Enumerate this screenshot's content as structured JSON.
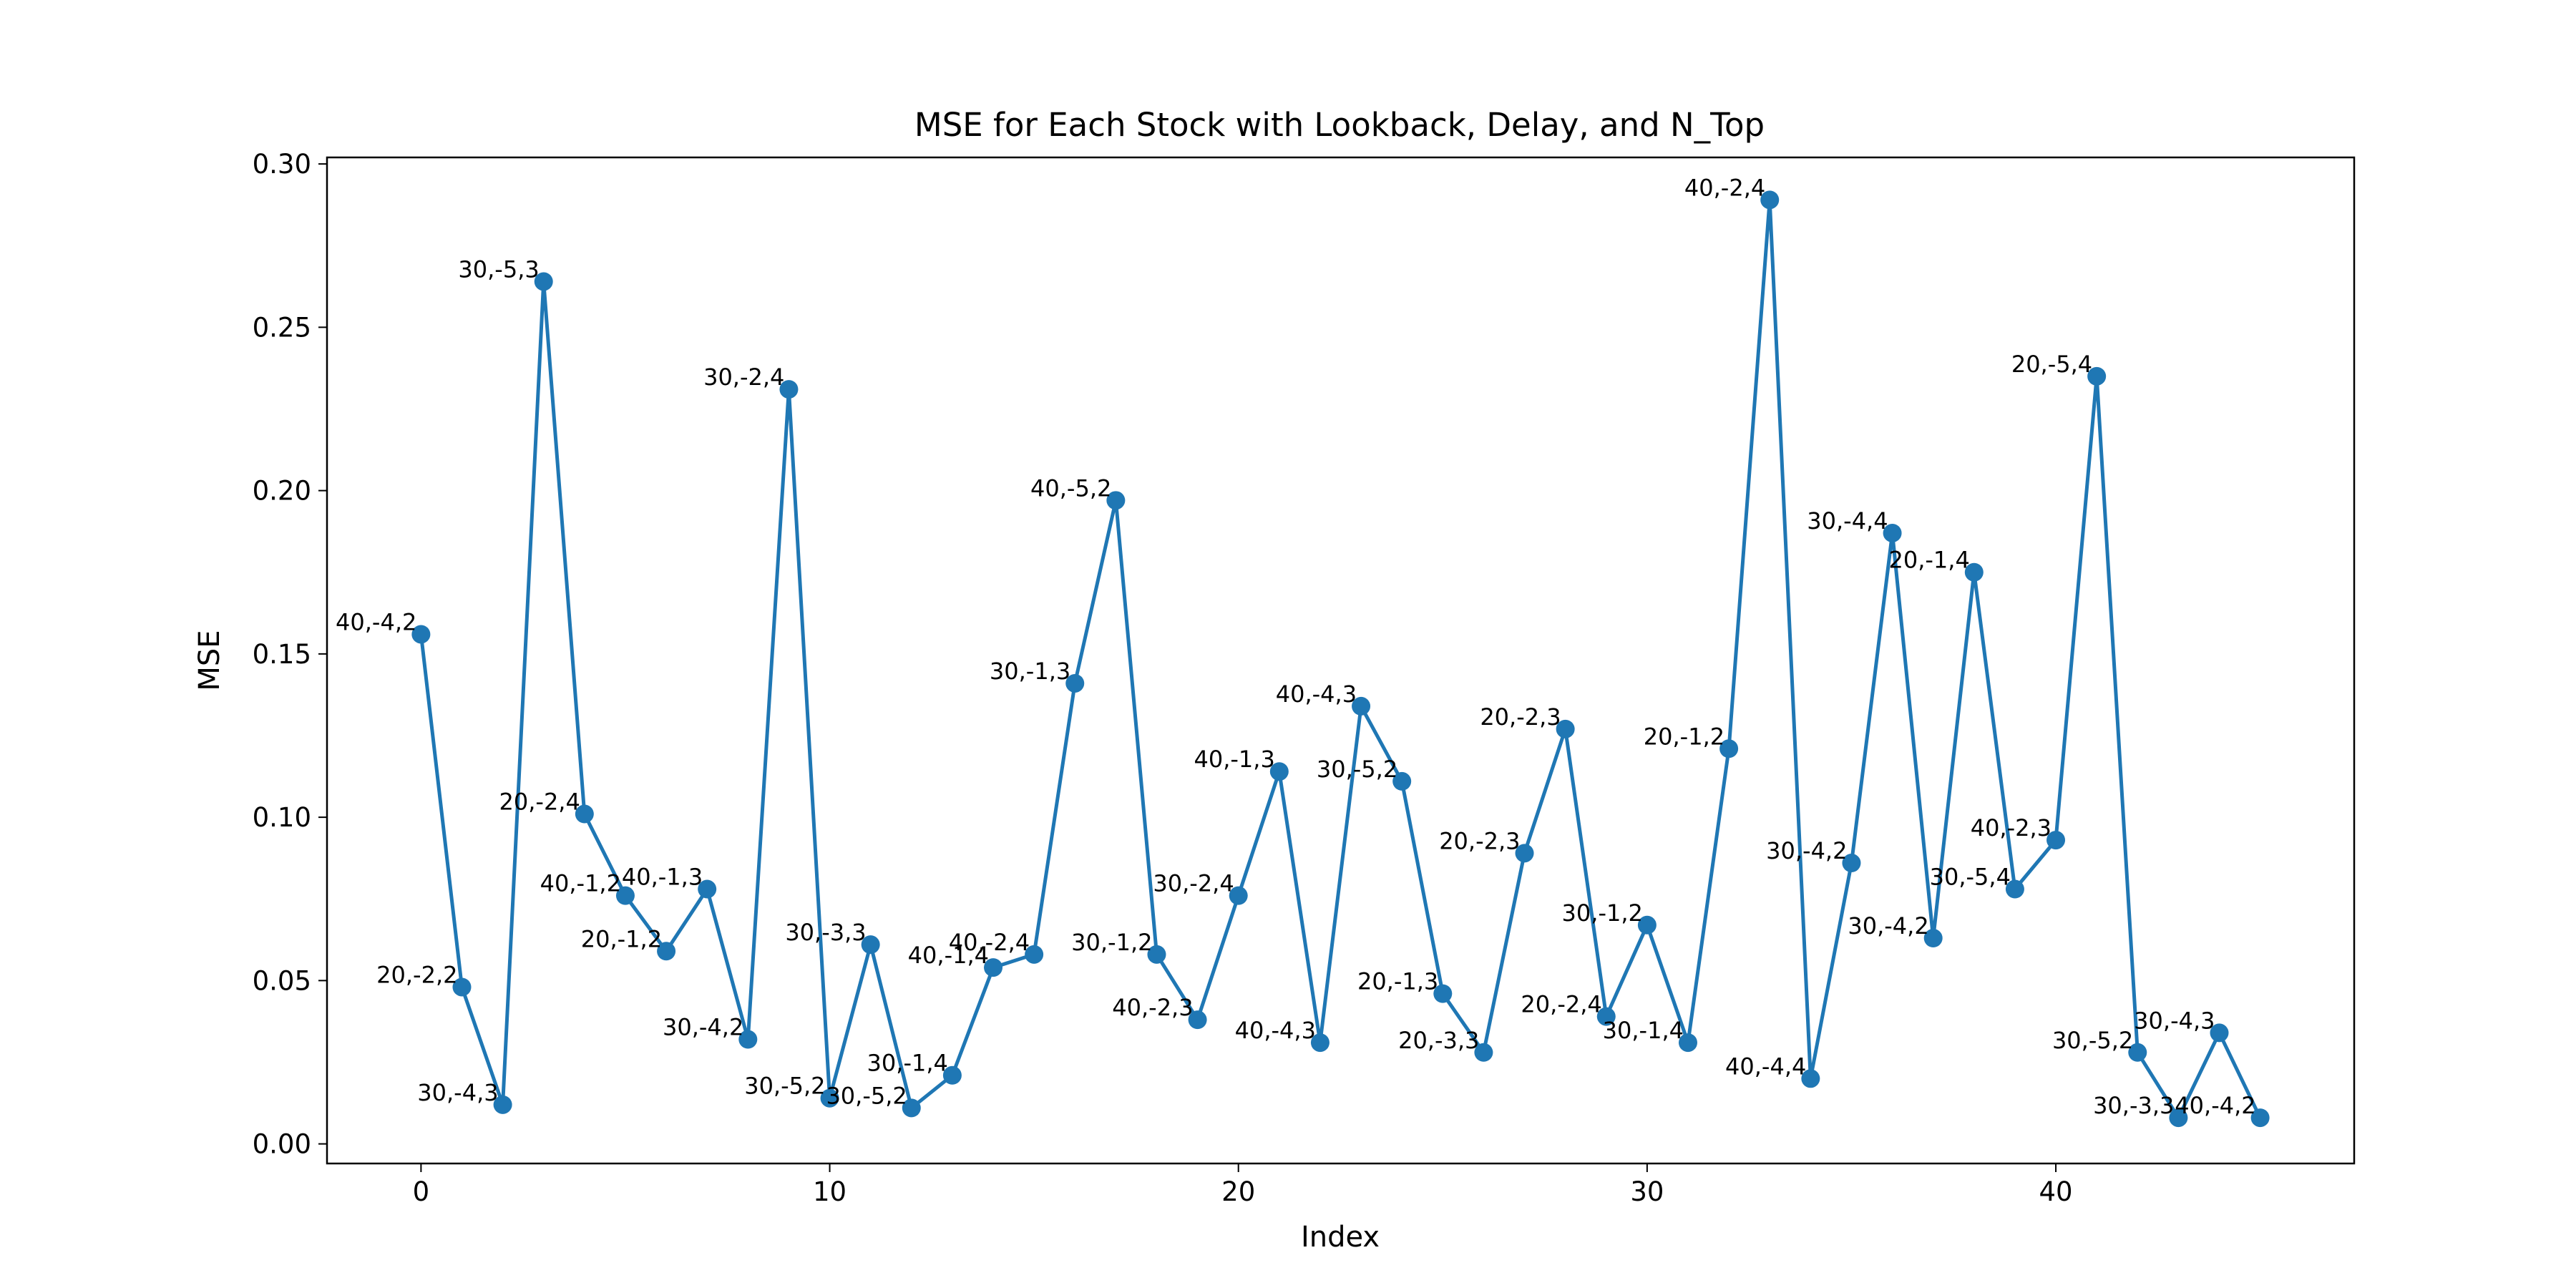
{
  "chart_data": {
    "type": "line",
    "title": "MSE for Each Stock with Lookback, Delay, and N_Top",
    "xlabel": "Index",
    "ylabel": "MSE",
    "xlim": [
      -2.3,
      47.3
    ],
    "ylim": [
      -0.006,
      0.302
    ],
    "xticks": [
      0,
      10,
      20,
      30,
      40
    ],
    "yticks": [
      0.0,
      0.05,
      0.1,
      0.15,
      0.2,
      0.25,
      0.3
    ],
    "ytick_labels": [
      "0.00",
      "0.05",
      "0.10",
      "0.15",
      "0.20",
      "0.25",
      "0.30"
    ],
    "grid": false,
    "color": "#1f77b4",
    "marker": "circle",
    "series": [
      {
        "x": [
          0,
          1,
          2,
          3,
          4,
          5,
          6,
          7,
          8,
          9,
          10,
          11,
          12,
          13,
          14,
          15,
          16,
          17,
          18,
          19,
          20,
          21,
          22,
          23,
          24,
          25,
          26,
          27,
          28,
          29,
          30,
          31,
          32,
          33,
          34,
          35,
          36,
          37,
          38,
          39,
          40,
          41,
          42,
          43,
          44,
          45
        ],
        "values": [
          0.156,
          0.048,
          0.012,
          0.264,
          0.101,
          0.076,
          0.059,
          0.078,
          0.032,
          0.231,
          0.014,
          0.061,
          0.011,
          0.021,
          0.054,
          0.058,
          0.141,
          0.197,
          0.058,
          0.038,
          0.076,
          0.114,
          0.031,
          0.134,
          0.111,
          0.046,
          0.028,
          0.089,
          0.127,
          0.039,
          0.067,
          0.031,
          0.121,
          0.289,
          0.02,
          0.086,
          0.187,
          0.063,
          0.175,
          0.078,
          0.093,
          0.235,
          0.028,
          0.008,
          0.034,
          0.008
        ],
        "labels": [
          "40,-4,2",
          "20,-2,2",
          "30,-4,3",
          "30,-5,3",
          "20,-2,4",
          "40,-1,2",
          "20,-1,2",
          "40,-1,3",
          "30,-4,2",
          "30,-2,4",
          "30,-5,2",
          "30,-3,3",
          "30,-5,2",
          "30,-1,4",
          "40,-1,4",
          "40,-2,4",
          "30,-1,3",
          "40,-5,2",
          "30,-1,2",
          "40,-2,3",
          "30,-2,4",
          "40,-1,3",
          "40,-4,3",
          "40,-4,3",
          "30,-5,2",
          "20,-1,3",
          "20,-3,3",
          "20,-2,3",
          "20,-2,3",
          "20,-2,4",
          "30,-1,2",
          "30,-1,4",
          "20,-1,2",
          "40,-2,4",
          "40,-4,4",
          "30,-4,2",
          "30,-4,4",
          "30,-4,2",
          "20,-1,4",
          "30,-5,4",
          "40,-2,3",
          "20,-5,4",
          "30,-5,2",
          "30,-3,3",
          "30,-4,3",
          "40,-4,2"
        ]
      }
    ]
  }
}
